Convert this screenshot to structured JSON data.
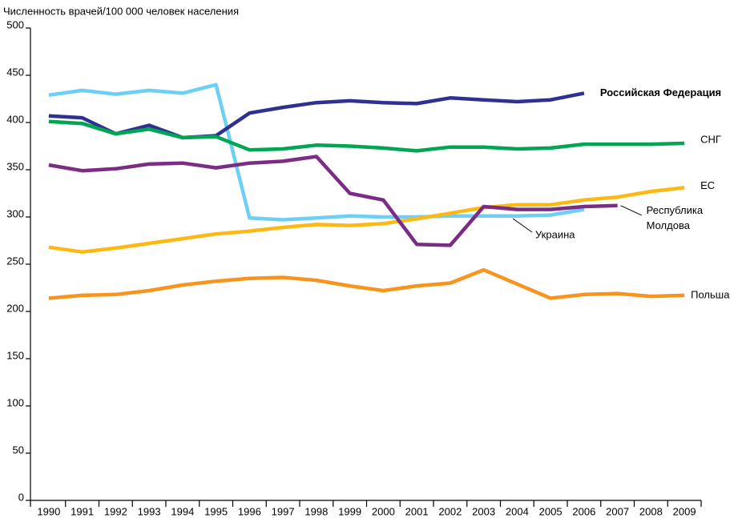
{
  "chart_data": {
    "type": "line",
    "y_axis_label": "Численность врачей/100 000 человек населения",
    "categories": [
      "1990",
      "1991",
      "1992",
      "1993",
      "1994",
      "1995",
      "1996",
      "1997",
      "1998",
      "1999",
      "2000",
      "2001",
      "2002",
      "2003",
      "2004",
      "2005",
      "2006",
      "2007",
      "2008",
      "2009"
    ],
    "ylim": [
      0,
      500
    ],
    "yticks": [
      0,
      50,
      100,
      150,
      200,
      250,
      300,
      350,
      400,
      450,
      500
    ],
    "series": [
      {
        "name": "Украина",
        "color": "#6dcff6",
        "values": [
          429,
          434,
          430,
          434,
          431,
          440,
          299,
          297,
          299,
          301,
          300,
          300,
          301,
          301,
          301,
          302,
          308,
          null,
          null,
          null
        ]
      },
      {
        "name": "Российская Федерация",
        "color": "#2e3192",
        "values": [
          407,
          405,
          388,
          397,
          384,
          386,
          410,
          416,
          421,
          423,
          421,
          420,
          426,
          424,
          422,
          424,
          431,
          null,
          null,
          null
        ]
      },
      {
        "name": "СНГ",
        "color": "#00a651",
        "values": [
          401,
          399,
          388,
          393,
          384,
          385,
          371,
          372,
          376,
          375,
          373,
          370,
          374,
          374,
          372,
          373,
          377,
          377,
          377,
          378
        ]
      },
      {
        "name": "ЕС",
        "color": "#fdb913",
        "values": [
          268,
          263,
          267,
          272,
          277,
          282,
          285,
          289,
          292,
          291,
          293,
          298,
          304,
          310,
          313,
          313,
          318,
          321,
          327,
          331
        ]
      },
      {
        "name": "Республика Молдова",
        "color": "#7b2c85",
        "values": [
          355,
          349,
          351,
          356,
          357,
          352,
          357,
          359,
          364,
          325,
          318,
          271,
          270,
          311,
          308,
          308,
          311,
          312,
          null,
          null
        ]
      },
      {
        "name": "Польша",
        "color": "#f7941d",
        "values": [
          214,
          217,
          218,
          222,
          228,
          232,
          235,
          236,
          233,
          227,
          222,
          227,
          230,
          244,
          229,
          214,
          218,
          219,
          216,
          217
        ]
      }
    ]
  }
}
